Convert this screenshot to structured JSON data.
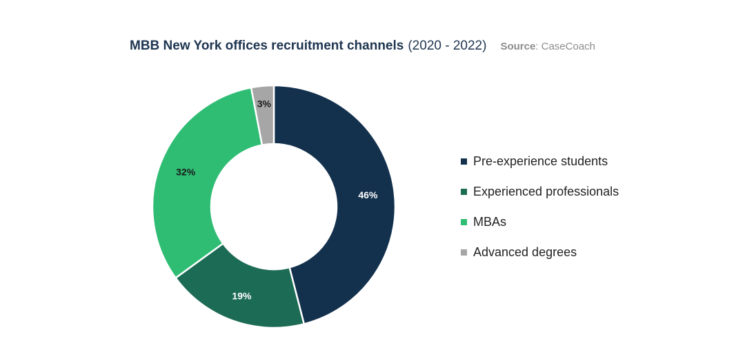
{
  "header": {
    "title": "MBB New York offices recruitment channels",
    "years": "(2020 - 2022)",
    "source_label": "Source",
    "source_value": ": CaseCoach"
  },
  "chart_data": {
    "type": "pie",
    "variant": "donut",
    "legend_position": "right",
    "slices": [
      {
        "label": "Pre-experience students",
        "value": 46,
        "display": "46%",
        "color": "#13314d",
        "label_color": "#ffffff"
      },
      {
        "label": "Experienced professionals",
        "value": 19,
        "display": "19%",
        "color": "#1c6b55",
        "label_color": "#ffffff"
      },
      {
        "label": "MBAs",
        "value": 32,
        "display": "32%",
        "color": "#2fbd74",
        "label_color": "#1a1a1a"
      },
      {
        "label": "Advanced degrees",
        "value": 3,
        "display": "3%",
        "color": "#a6a6a6",
        "label_color": "#1a1a1a"
      }
    ]
  }
}
